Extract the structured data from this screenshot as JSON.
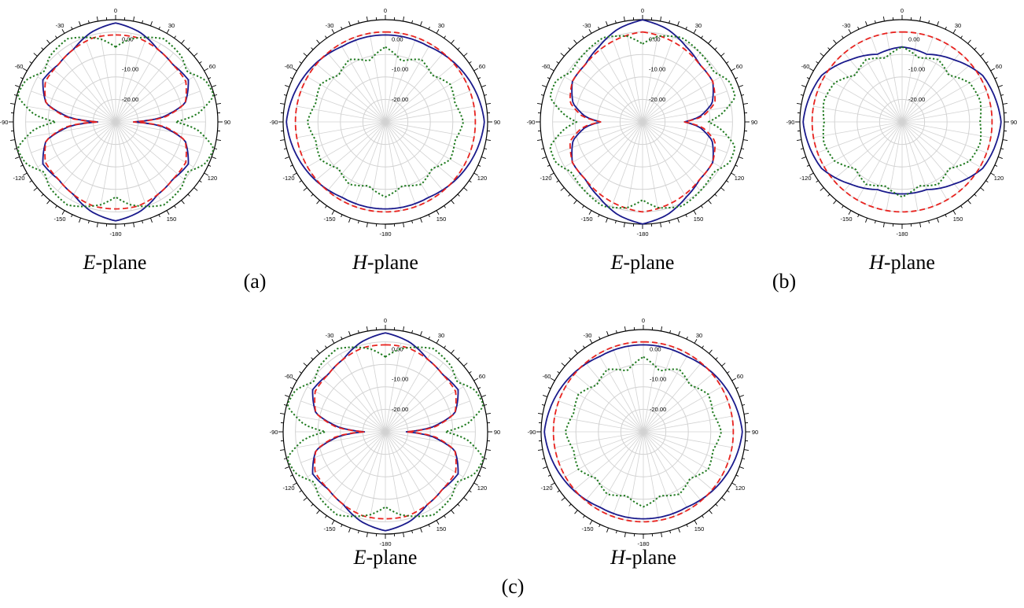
{
  "figure": {
    "panels": [
      {
        "id": "a",
        "label": "(a)"
      },
      {
        "id": "b",
        "label": "(b)"
      },
      {
        "id": "c",
        "label": "(c)"
      }
    ],
    "plane_labels": {
      "e_italic": "E",
      "h_italic": "H",
      "suffix": "-plane"
    }
  },
  "colors": {
    "blue": "#1a1a8c",
    "red": "#e8231f",
    "green": "#1f7a1f",
    "grid": "#d2d2d2",
    "axis": "#000000"
  },
  "chart_data": [
    {
      "type": "polar",
      "panel": "(a)",
      "plane": "E-plane",
      "radial_ticks": [
        "0.00",
        "-10.00",
        "-20.00"
      ],
      "r_range": [
        -30,
        0
      ],
      "angle_ticks": [
        0,
        30,
        60,
        90,
        120,
        150,
        -180,
        -150,
        -120,
        -90,
        -60,
        -30
      ],
      "series": [
        {
          "color": "blue",
          "style": "solid",
          "points": [
            [
              0,
              3
            ],
            [
              15,
              1
            ],
            [
              30,
              -2
            ],
            [
              45,
              -3
            ],
            [
              60,
              -2
            ],
            [
              75,
              -6
            ],
            [
              85,
              -15
            ],
            [
              90,
              -24
            ],
            [
              95,
              -15
            ],
            [
              105,
              -6
            ],
            [
              120,
              -2
            ],
            [
              135,
              -3
            ],
            [
              150,
              -2
            ],
            [
              165,
              1
            ],
            [
              180,
              3
            ]
          ]
        },
        {
          "color": "red",
          "style": "dashed",
          "points": [
            [
              0,
              -1
            ],
            [
              15,
              -1
            ],
            [
              30,
              -2
            ],
            [
              45,
              -3
            ],
            [
              60,
              -3
            ],
            [
              75,
              -6
            ],
            [
              85,
              -14
            ],
            [
              90,
              -24
            ],
            [
              95,
              -14
            ],
            [
              105,
              -6
            ],
            [
              120,
              -3
            ],
            [
              135,
              -3
            ],
            [
              150,
              -2
            ],
            [
              165,
              -1
            ],
            [
              180,
              -1
            ]
          ]
        },
        {
          "color": "green",
          "style": "dotted",
          "points": [
            [
              0,
              -5
            ],
            [
              10,
              -2
            ],
            [
              20,
              0
            ],
            [
              30,
              2
            ],
            [
              45,
              1
            ],
            [
              55,
              -1
            ],
            [
              65,
              3
            ],
            [
              75,
              4
            ],
            [
              85,
              -3
            ],
            [
              90,
              -10
            ],
            [
              95,
              -3
            ],
            [
              105,
              4
            ],
            [
              115,
              3
            ],
            [
              125,
              -1
            ],
            [
              135,
              1
            ],
            [
              150,
              2
            ],
            [
              160,
              0
            ],
            [
              170,
              -2
            ],
            [
              180,
              -5
            ]
          ]
        }
      ]
    },
    {
      "type": "polar",
      "panel": "(a)",
      "plane": "H-plane",
      "radial_ticks": [
        "0.00",
        "-10.00",
        "-20.00"
      ],
      "r_range": [
        -30,
        0
      ],
      "angle_ticks": [
        0,
        30,
        60,
        90,
        120,
        150,
        -180,
        -150,
        -120,
        -90,
        -60,
        -30
      ],
      "series": [
        {
          "color": "blue",
          "style": "solid",
          "points": [
            [
              0,
              -1
            ],
            [
              30,
              -1
            ],
            [
              60,
              1
            ],
            [
              90,
              3
            ],
            [
              120,
              1
            ],
            [
              150,
              -1
            ],
            [
              180,
              -1
            ]
          ]
        },
        {
          "color": "red",
          "style": "dashed",
          "points": [
            [
              0,
              0
            ],
            [
              45,
              0
            ],
            [
              90,
              0
            ],
            [
              135,
              0
            ],
            [
              180,
              0
            ]
          ]
        },
        {
          "color": "green",
          "style": "dotted",
          "points": [
            [
              0,
              -5
            ],
            [
              15,
              -9
            ],
            [
              30,
              -6
            ],
            [
              45,
              -8
            ],
            [
              60,
              -5
            ],
            [
              75,
              -6
            ],
            [
              90,
              -4
            ],
            [
              105,
              -6
            ],
            [
              120,
              -5
            ],
            [
              135,
              -8
            ],
            [
              150,
              -6
            ],
            [
              165,
              -8
            ],
            [
              180,
              -5
            ]
          ]
        }
      ]
    },
    {
      "type": "polar",
      "panel": "(b)",
      "plane": "E-plane",
      "radial_ticks": [
        "0.00",
        "-10.00",
        "-20.00"
      ],
      "r_range": [
        -30,
        0
      ],
      "angle_ticks": [
        0,
        30,
        60,
        90,
        120,
        150,
        -180,
        -150,
        -120,
        -90,
        -60,
        -30
      ],
      "series": [
        {
          "color": "blue",
          "style": "solid",
          "points": [
            [
              0,
              4
            ],
            [
              15,
              2
            ],
            [
              30,
              -1
            ],
            [
              45,
              -3
            ],
            [
              60,
              -3
            ],
            [
              75,
              -6
            ],
            [
              85,
              -11
            ],
            [
              90,
              -16
            ],
            [
              95,
              -11
            ],
            [
              105,
              -6
            ],
            [
              120,
              -3
            ],
            [
              135,
              -3
            ],
            [
              150,
              -1
            ],
            [
              165,
              2
            ],
            [
              180,
              4
            ]
          ]
        },
        {
          "color": "red",
          "style": "dashed",
          "points": [
            [
              0,
              0
            ],
            [
              15,
              -1
            ],
            [
              30,
              -2
            ],
            [
              45,
              -3
            ],
            [
              60,
              -3
            ],
            [
              75,
              -5
            ],
            [
              85,
              -10
            ],
            [
              90,
              -16
            ],
            [
              95,
              -10
            ],
            [
              105,
              -5
            ],
            [
              120,
              -3
            ],
            [
              135,
              -3
            ],
            [
              150,
              -2
            ],
            [
              165,
              -1
            ],
            [
              180,
              0
            ]
          ]
        },
        {
          "color": "green",
          "style": "dotted",
          "points": [
            [
              0,
              -4
            ],
            [
              10,
              -1
            ],
            [
              25,
              1
            ],
            [
              40,
              0
            ],
            [
              55,
              -1
            ],
            [
              65,
              2
            ],
            [
              75,
              2
            ],
            [
              85,
              -4
            ],
            [
              90,
              -8
            ],
            [
              95,
              -4
            ],
            [
              105,
              2
            ],
            [
              115,
              2
            ],
            [
              125,
              -1
            ],
            [
              140,
              0
            ],
            [
              155,
              1
            ],
            [
              170,
              -1
            ],
            [
              180,
              -4
            ]
          ]
        }
      ]
    },
    {
      "type": "polar",
      "panel": "(b)",
      "plane": "H-plane",
      "radial_ticks": [
        "0.00",
        "-10.00",
        "-20.00"
      ],
      "r_range": [
        -30,
        0
      ],
      "angle_ticks": [
        0,
        30,
        60,
        90,
        120,
        150,
        -180,
        -150,
        -120,
        -90,
        -60,
        -30
      ],
      "series": [
        {
          "color": "blue",
          "style": "solid",
          "points": [
            [
              0,
              -5
            ],
            [
              20,
              -6
            ],
            [
              40,
              -3
            ],
            [
              60,
              1
            ],
            [
              90,
              3
            ],
            [
              120,
              1
            ],
            [
              140,
              -3
            ],
            [
              160,
              -6
            ],
            [
              180,
              -6
            ]
          ]
        },
        {
          "color": "red",
          "style": "dashed",
          "points": [
            [
              0,
              0
            ],
            [
              45,
              0
            ],
            [
              90,
              0
            ],
            [
              135,
              0
            ],
            [
              180,
              0
            ]
          ]
        },
        {
          "color": "green",
          "style": "dotted",
          "points": [
            [
              0,
              -5
            ],
            [
              15,
              -8
            ],
            [
              30,
              -6
            ],
            [
              45,
              -8
            ],
            [
              60,
              -4
            ],
            [
              75,
              -3
            ],
            [
              90,
              -4
            ],
            [
              105,
              -3
            ],
            [
              120,
              -4
            ],
            [
              135,
              -8
            ],
            [
              150,
              -6
            ],
            [
              165,
              -8
            ],
            [
              180,
              -5
            ]
          ]
        }
      ]
    },
    {
      "type": "polar",
      "panel": "(c)",
      "plane": "E-plane",
      "radial_ticks": [
        "0.00",
        "-10.00",
        "-20.00"
      ],
      "r_range": [
        -30,
        0
      ],
      "angle_ticks": [
        0,
        30,
        60,
        90,
        120,
        150,
        -180,
        -150,
        -120,
        -90,
        -60,
        -30
      ],
      "series": [
        {
          "color": "blue",
          "style": "solid",
          "points": [
            [
              0,
              3
            ],
            [
              15,
              1
            ],
            [
              30,
              -2
            ],
            [
              45,
              -3
            ],
            [
              60,
              -2
            ],
            [
              75,
              -6
            ],
            [
              85,
              -15
            ],
            [
              90,
              -23
            ],
            [
              95,
              -15
            ],
            [
              105,
              -6
            ],
            [
              120,
              -2
            ],
            [
              135,
              -3
            ],
            [
              150,
              -2
            ],
            [
              165,
              1
            ],
            [
              180,
              3
            ]
          ]
        },
        {
          "color": "red",
          "style": "dashed",
          "points": [
            [
              0,
              -1
            ],
            [
              15,
              -1
            ],
            [
              30,
              -2
            ],
            [
              45,
              -3
            ],
            [
              60,
              -3
            ],
            [
              75,
              -6
            ],
            [
              85,
              -14
            ],
            [
              90,
              -23
            ],
            [
              95,
              -14
            ],
            [
              105,
              -6
            ],
            [
              120,
              -3
            ],
            [
              135,
              -3
            ],
            [
              150,
              -2
            ],
            [
              165,
              -1
            ],
            [
              180,
              -1
            ]
          ]
        },
        {
          "color": "green",
          "style": "dotted",
          "points": [
            [
              0,
              -5
            ],
            [
              10,
              -2
            ],
            [
              20,
              0
            ],
            [
              30,
              2
            ],
            [
              45,
              1
            ],
            [
              55,
              -1
            ],
            [
              65,
              3
            ],
            [
              75,
              4
            ],
            [
              85,
              -3
            ],
            [
              90,
              -10
            ],
            [
              95,
              -3
            ],
            [
              105,
              4
            ],
            [
              115,
              3
            ],
            [
              125,
              -1
            ],
            [
              135,
              1
            ],
            [
              150,
              2
            ],
            [
              160,
              0
            ],
            [
              170,
              -2
            ],
            [
              180,
              -5
            ]
          ]
        }
      ]
    },
    {
      "type": "polar",
      "panel": "(c)",
      "plane": "H-plane",
      "radial_ticks": [
        "0.00",
        "-10.00",
        "-20.00"
      ],
      "r_range": [
        -30,
        0
      ],
      "angle_ticks": [
        0,
        30,
        60,
        90,
        120,
        150,
        -180,
        -150,
        -120,
        -90,
        -60,
        -30
      ],
      "series": [
        {
          "color": "blue",
          "style": "solid",
          "points": [
            [
              0,
              -1
            ],
            [
              30,
              -1
            ],
            [
              60,
              1
            ],
            [
              90,
              3
            ],
            [
              120,
              1
            ],
            [
              150,
              -1
            ],
            [
              180,
              -1
            ]
          ]
        },
        {
          "color": "red",
          "style": "dashed",
          "points": [
            [
              0,
              0
            ],
            [
              45,
              0
            ],
            [
              90,
              0
            ],
            [
              135,
              0
            ],
            [
              180,
              0
            ]
          ]
        },
        {
          "color": "green",
          "style": "dotted",
          "points": [
            [
              0,
              -5
            ],
            [
              15,
              -9
            ],
            [
              30,
              -6
            ],
            [
              45,
              -8
            ],
            [
              60,
              -5
            ],
            [
              75,
              -6
            ],
            [
              90,
              -4
            ],
            [
              105,
              -6
            ],
            [
              120,
              -5
            ],
            [
              135,
              -8
            ],
            [
              150,
              -6
            ],
            [
              165,
              -8
            ],
            [
              180,
              -5
            ]
          ]
        }
      ]
    }
  ]
}
